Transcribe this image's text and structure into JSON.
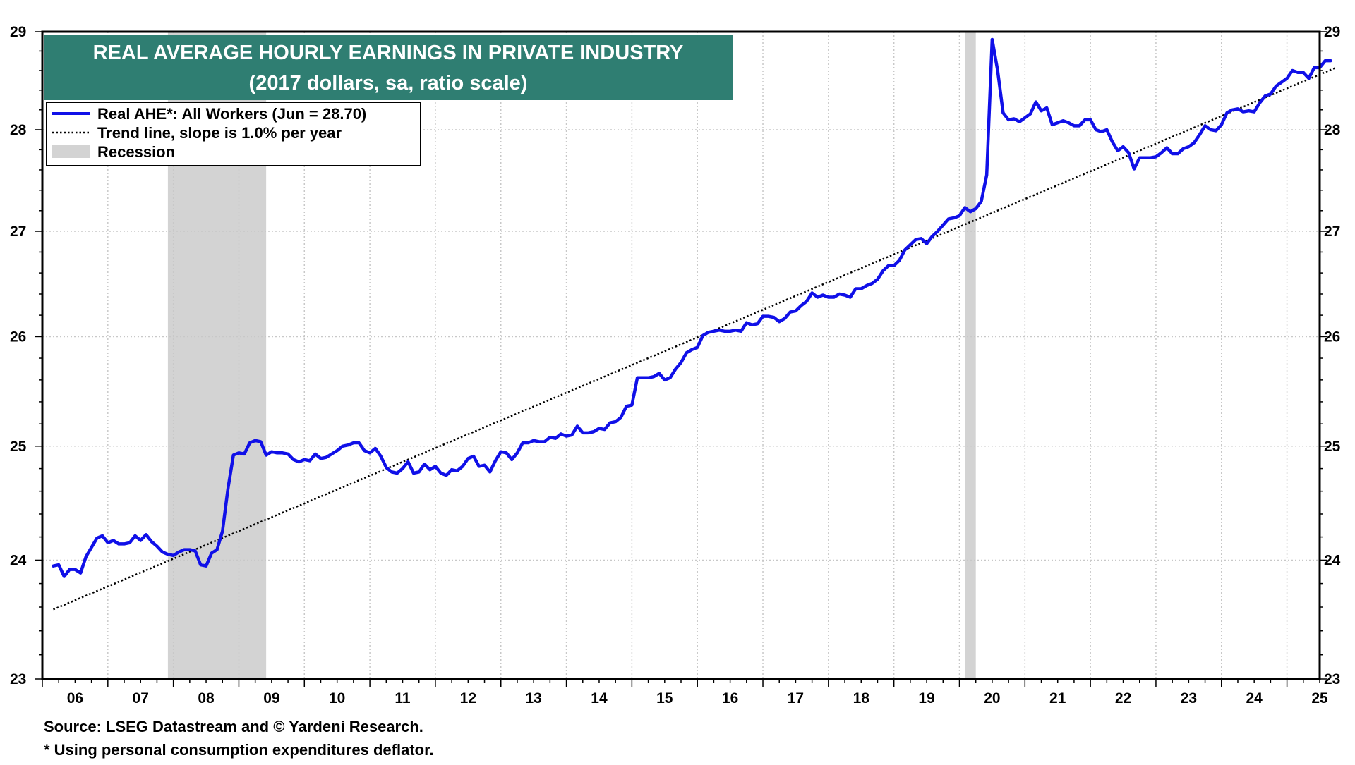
{
  "chart_data": {
    "type": "line",
    "title": "REAL AVERAGE HOURLY EARNINGS IN PRIVATE INDUSTRY",
    "subtitle": "(2017 dollars, sa, ratio scale)",
    "scale": "log",
    "ylim": [
      23,
      29
    ],
    "yticks": [
      "23",
      "24",
      "25",
      "26",
      "27",
      "28",
      "29"
    ],
    "year_labels": [
      "06",
      "07",
      "08",
      "09",
      "10",
      "11",
      "12",
      "13",
      "14",
      "15",
      "16",
      "17",
      "18",
      "19",
      "20",
      "21",
      "22",
      "23",
      "24",
      "25"
    ],
    "xlim": [
      "2006-01",
      "2025-07"
    ],
    "grid": true,
    "legend": {
      "placement": "top-left",
      "entries": [
        {
          "label": "Real AHE*: All Workers (Jun = 28.70)",
          "style": "solid",
          "color": "#1010e8"
        },
        {
          "label": "Trend line, slope is 1.0% per year",
          "style": "dotted",
          "color": "#000000"
        },
        {
          "label": "Recession",
          "style": "shaded",
          "color": "#d3d3d3"
        }
      ]
    },
    "recessions": [
      {
        "start": "2007-12",
        "end": "2009-06"
      },
      {
        "start": "2020-02",
        "end": "2020-04"
      }
    ],
    "trend": {
      "start": 23.58,
      "end": 28.63,
      "slope_label": "1.0% per year"
    },
    "series": [
      {
        "name": "Real AHE*: All Workers (Jun = 28.70)",
        "start": "2006-03",
        "frequency": "monthly",
        "color": "#1010e8",
        "values": [
          23.95,
          23.96,
          23.86,
          23.92,
          23.92,
          23.89,
          24.03,
          24.11,
          24.19,
          24.21,
          24.15,
          24.17,
          24.14,
          24.14,
          24.15,
          24.21,
          24.17,
          24.22,
          24.16,
          24.12,
          24.07,
          24.05,
          24.04,
          24.07,
          24.09,
          24.09,
          24.08,
          23.96,
          23.95,
          24.06,
          24.09,
          24.25,
          24.62,
          24.92,
          24.94,
          24.93,
          25.03,
          25.05,
          25.04,
          24.92,
          24.95,
          24.94,
          24.94,
          24.93,
          24.88,
          24.86,
          24.88,
          24.87,
          24.93,
          24.89,
          24.9,
          24.93,
          24.96,
          25.0,
          25.01,
          25.03,
          25.03,
          24.96,
          24.94,
          24.98,
          24.91,
          24.81,
          24.77,
          24.76,
          24.8,
          24.86,
          24.76,
          24.77,
          24.84,
          24.79,
          24.82,
          24.76,
          24.74,
          24.79,
          24.78,
          24.82,
          24.89,
          24.91,
          24.82,
          24.83,
          24.77,
          24.87,
          24.95,
          24.94,
          24.88,
          24.94,
          25.03,
          25.03,
          25.05,
          25.04,
          25.04,
          25.08,
          25.07,
          25.11,
          25.09,
          25.1,
          25.18,
          25.12,
          25.12,
          25.13,
          25.16,
          25.15,
          25.21,
          25.22,
          25.26,
          25.36,
          25.37,
          25.62,
          25.62,
          25.62,
          25.63,
          25.66,
          25.6,
          25.62,
          25.7,
          25.76,
          25.85,
          25.88,
          25.9,
          26.01,
          26.04,
          26.05,
          26.06,
          26.05,
          26.05,
          26.06,
          26.05,
          26.13,
          26.11,
          26.12,
          26.19,
          26.19,
          26.18,
          26.14,
          26.17,
          26.23,
          26.24,
          26.29,
          26.33,
          26.41,
          26.37,
          26.39,
          26.37,
          26.37,
          26.4,
          26.39,
          26.37,
          26.45,
          26.45,
          26.48,
          26.5,
          26.54,
          26.62,
          26.67,
          26.67,
          26.72,
          26.82,
          26.87,
          26.92,
          26.93,
          26.88,
          26.95,
          27.0,
          27.06,
          27.12,
          27.13,
          27.15,
          27.23,
          27.19,
          27.22,
          27.29,
          27.55,
          28.92,
          28.6,
          28.17,
          28.1,
          28.11,
          28.08,
          28.12,
          28.16,
          28.28,
          28.19,
          28.22,
          28.05,
          28.07,
          28.09,
          28.07,
          28.04,
          28.04,
          28.1,
          28.1,
          28.0,
          27.98,
          28.0,
          27.88,
          27.79,
          27.83,
          27.77,
          27.61,
          27.72,
          27.72,
          27.72,
          27.73,
          27.77,
          27.82,
          27.76,
          27.76,
          27.81,
          27.83,
          27.87,
          27.95,
          28.04,
          28.0,
          27.99,
          28.05,
          28.17,
          28.2,
          28.21,
          28.18,
          28.19,
          28.18,
          28.27,
          28.34,
          28.36,
          28.44,
          28.48,
          28.52,
          28.6,
          28.58,
          28.58,
          28.52,
          28.63,
          28.63,
          28.7,
          28.7
        ]
      }
    ]
  },
  "notes": {
    "source": "Source: LSEG Datastream and © Yardeni Research.",
    "footnote": "* Using personal consumption expenditures deflator."
  },
  "colors": {
    "title_bg": "#2f7e72",
    "series": "#1010e8",
    "recession": "#d3d3d3",
    "grid": "#c8c8c8"
  }
}
